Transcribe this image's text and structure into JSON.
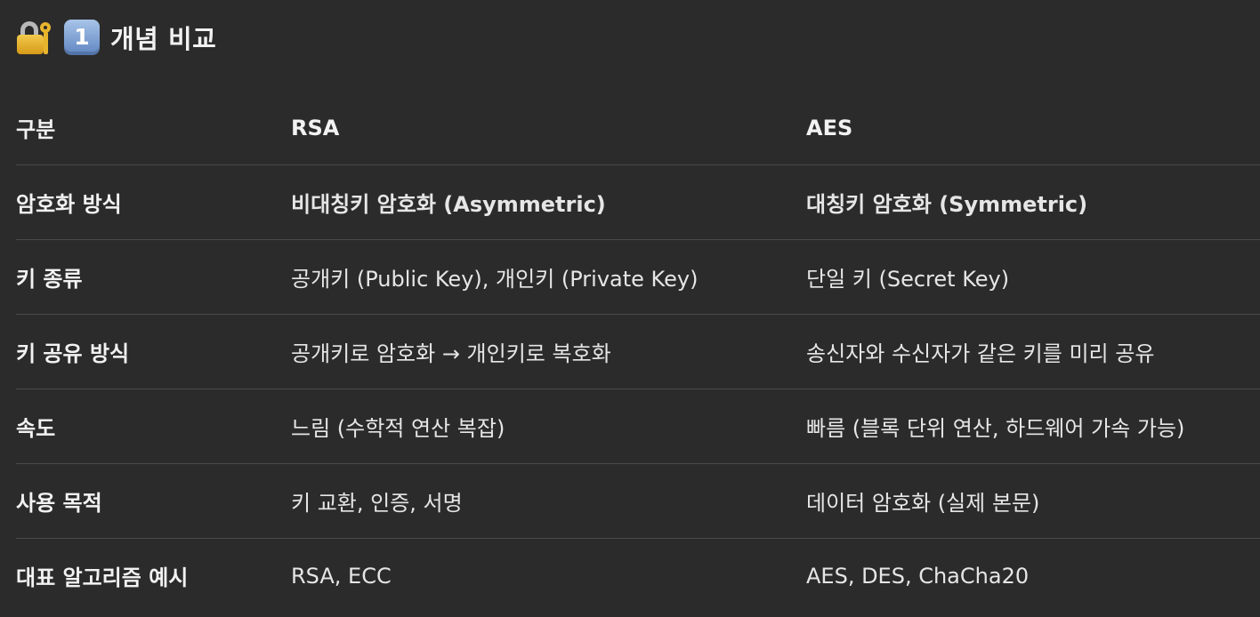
{
  "heading": {
    "lock_icon": "locked-with-key-icon",
    "number_icon": "keycap-1-icon",
    "number": "1",
    "title": "개념 비교"
  },
  "table": {
    "headers": [
      "구분",
      "RSA",
      "AES"
    ],
    "rows": [
      [
        "암호화 방식",
        "비대칭키 암호화 (Asymmetric)",
        "대칭키 암호화 (Symmetric)"
      ],
      [
        "키 종류",
        "공개키 (Public Key), 개인키 (Private Key)",
        "단일 키 (Secret Key)"
      ],
      [
        "키 공유 방식",
        "공개키로 암호화 → 개인키로 복호화",
        "송신자와 수신자가 같은 키를 미리 공유"
      ],
      [
        "속도",
        "느림 (수학적 연산 복잡)",
        "빠름 (블록 단위 연산, 하드웨어 가속 가능)"
      ],
      [
        "사용 목적",
        "키 교환, 인증, 서명",
        "데이터 암호화 (실제 본문)"
      ],
      [
        "대표 알고리즘 예시",
        "RSA, ECC",
        "AES, DES, ChaCha20"
      ]
    ]
  },
  "colors": {
    "background": "#2b2b2b",
    "text": "#ececec",
    "divider": "#4a4a4a"
  }
}
